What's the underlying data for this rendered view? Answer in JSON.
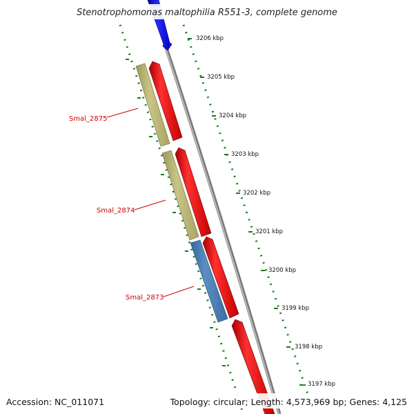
{
  "title": "Stenotrophomonas maltophilia R551-3, complete genome",
  "accession": "Accession: NC_011071",
  "summary": "Topology: circular; Length: 4,573,969 bp; Genes: 4,125",
  "scale_ticks": [
    "3206 kbp",
    "3205 kbp",
    "3204 kbp",
    "3203 kbp",
    "3202 kbp",
    "3201 kbp",
    "3200 kbp",
    "3199 kbp",
    "3198 kbp",
    "3197 kbp"
  ],
  "gene_labels": [
    "Smal_2875",
    "Smal_2874",
    "Smal_2873"
  ],
  "colors": {
    "forward_cds": "#ee1111",
    "top_cds": "#1111dd",
    "trna_like": "#b8b46e",
    "steel_feature": "#4a7fb5",
    "backbone": "#888888",
    "scale_dots": "#1a7a1a",
    "gene_label": "#cc0000"
  }
}
